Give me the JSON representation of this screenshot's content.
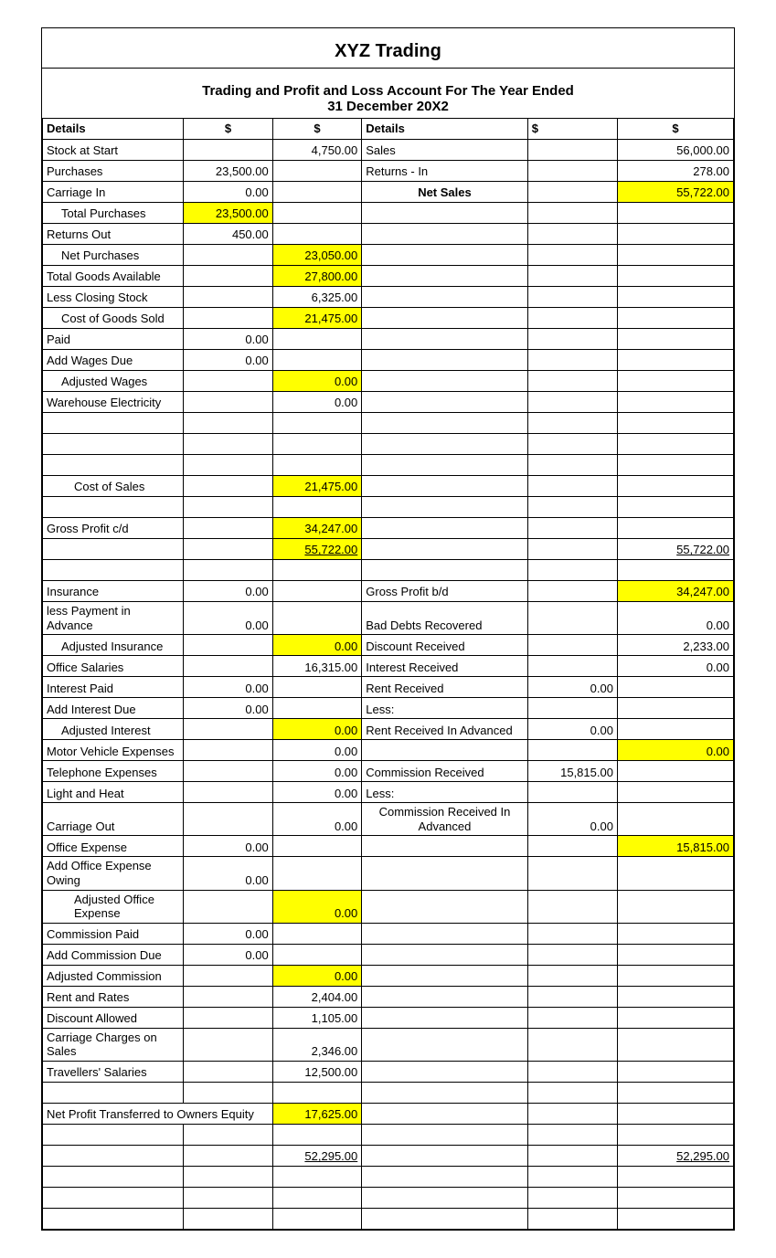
{
  "company": "XYZ Trading",
  "report_line1": "Trading and Profit and Loss Account For The Year Ended",
  "report_line2": "31 December 20X2",
  "headers": {
    "details": "Details",
    "dollar": "$"
  },
  "rows": [
    {
      "l": "Stock at Start",
      "c2": "",
      "c3": "4,750.00",
      "r": "Sales",
      "c5": "",
      "c6": "56,000.00"
    },
    {
      "l": "Purchases",
      "c2": "23,500.00",
      "c3": "",
      "r": "Returns - In",
      "c5": "",
      "c6": "278.00"
    },
    {
      "l": "Carriage In",
      "c2": "0.00",
      "c3": "",
      "r": "Net Sales",
      "r_bold": true,
      "r_center": true,
      "c5": "",
      "c6": "55,722.00",
      "yellow_c6": true
    },
    {
      "l": "Total Purchases",
      "l_indent": 1,
      "c2": "23,500.00",
      "yellow_c2": true,
      "c3": "",
      "r": "",
      "c5": "",
      "c6": ""
    },
    {
      "l": "Returns Out",
      "c2": "450.00",
      "c3": "",
      "r": "",
      "c5": "",
      "c6": ""
    },
    {
      "l": "Net Purchases",
      "l_indent": 1,
      "c2": "",
      "c3": "23,050.00",
      "yellow_c3": true,
      "r": "",
      "c5": "",
      "c6": ""
    },
    {
      "l": " Total Goods Available",
      "c2": "",
      "c3": "27,800.00",
      "yellow_c3": true,
      "r": "",
      "c5": "",
      "c6": ""
    },
    {
      "l": "Less Closing Stock",
      "c2": "",
      "c3": "6,325.00",
      "r": "",
      "c5": "",
      "c6": ""
    },
    {
      "l": "Cost of Goods Sold",
      "l_indent": 1,
      "c2": "",
      "c3": "21,475.00",
      "yellow_c3": true,
      "r": "",
      "c5": "",
      "c6": ""
    },
    {
      "l": "Paid",
      "c2": "0.00",
      "c3": "",
      "r": "",
      "c5": "",
      "c6": ""
    },
    {
      "l": "Add Wages Due",
      "c2": "0.00",
      "c3": "",
      "r": "",
      "c5": "",
      "c6": ""
    },
    {
      "l": "Adjusted Wages",
      "l_indent": 1,
      "c2": "",
      "c3": "0.00",
      "yellow_c3": true,
      "r": "",
      "c5": "",
      "c6": ""
    },
    {
      "l": "Warehouse Electricity",
      "c2": "",
      "c3": "0.00",
      "r": "",
      "c5": "",
      "c6": ""
    },
    {
      "l": "",
      "c2": "",
      "c3": "",
      "r": "",
      "c5": "",
      "c6": ""
    },
    {
      "l": "",
      "c2": "",
      "c3": "",
      "r": "",
      "c5": "",
      "c6": ""
    },
    {
      "l": "",
      "c2": "",
      "c3": "",
      "r": "",
      "c5": "",
      "c6": ""
    },
    {
      "l": "Cost of Sales",
      "l_indent": 2,
      "c2": "",
      "c3": "21,475.00",
      "yellow_c3": true,
      "r": "",
      "c5": "",
      "c6": ""
    },
    {
      "l": "",
      "c2": "",
      "c3": "",
      "r": "",
      "c5": "",
      "c6": ""
    },
    {
      "l": "Gross Profit c/d",
      "c2": "",
      "c3": "34,247.00",
      "yellow_c3": true,
      "r": "",
      "c5": "",
      "c6": ""
    },
    {
      "l": "",
      "c2": "",
      "c3": "55,722.00",
      "yellow_c3": true,
      "c3_underline": true,
      "r": "",
      "c5": "",
      "c6": "55,722.00",
      "c6_underline": true
    },
    {
      "l": "",
      "c2": "",
      "c3": "",
      "r": "",
      "c5": "",
      "c6": ""
    },
    {
      "l": "Insurance",
      "c2": "0.00",
      "c3": "",
      "r": "Gross Profit b/d",
      "c5": "",
      "c6": "34,247.00",
      "yellow_c6": true
    },
    {
      "l": "less Payment in Advance",
      "c2": "0.00",
      "c3": "",
      "r": "Bad Debts Recovered",
      "c5": "",
      "c6": "0.00"
    },
    {
      "l": "Adjusted Insurance",
      "l_indent": 1,
      "c2": "",
      "c3": "0.00",
      "yellow_c3": true,
      "r": "Discount Received",
      "c5": "",
      "c6": "2,233.00"
    },
    {
      "l": "Office Salaries",
      "c2": "",
      "c3": "16,315.00",
      "r": "Interest Received",
      "c5": "",
      "c6": "0.00"
    },
    {
      "l": "Interest Paid",
      "c2": "0.00",
      "c3": "",
      "r": "Rent Received",
      "c5": "0.00",
      "c6": ""
    },
    {
      "l": "Add Interest Due",
      "c2": "0.00",
      "c3": "",
      "r": "Less:",
      "c5": "",
      "c6": ""
    },
    {
      "l": "Adjusted Interest",
      "l_indent": 1,
      "c2": "",
      "c3": "0.00",
      "yellow_c3": true,
      "r": "Rent Received In Advanced",
      "c5": "0.00",
      "c6": ""
    },
    {
      "l": "Motor Vehicle Expenses",
      "c2": "",
      "c3": "0.00",
      "r": "",
      "c5": "",
      "c6": "0.00",
      "yellow_c6": true
    },
    {
      "l": "Telephone Expenses",
      "c2": "",
      "c3": "0.00",
      "r": "Commission Received",
      "c5": "15,815.00",
      "c6": ""
    },
    {
      "l": "Light and Heat",
      "c2": "",
      "c3": "0.00",
      "r": "Less:",
      "c5": "",
      "c6": ""
    },
    {
      "l": "Carriage Out",
      "c2": "",
      "c3": "0.00",
      "r": "Commission Received In Advanced",
      "r_center": true,
      "c5": "0.00",
      "c6": ""
    },
    {
      "l": "Office Expense",
      "c2": "0.00",
      "c3": "",
      "r": "",
      "c5": "",
      "c6": "15,815.00",
      "yellow_c6": true
    },
    {
      "l": "Add Office Expense Owing",
      "c2": "0.00",
      "c3": "",
      "r": "",
      "c5": "",
      "c6": ""
    },
    {
      "l": "Adjusted Office Expense",
      "l_indent": 2,
      "l_center": false,
      "c2": "",
      "c3": "0.00",
      "yellow_c3": true,
      "r": "",
      "c5": "",
      "c6": ""
    },
    {
      "l": "Commission Paid",
      "c2": "0.00",
      "c3": "",
      "r": "",
      "c5": "",
      "c6": ""
    },
    {
      "l": "Add Commission Due",
      "c2": "0.00",
      "c3": "",
      "r": "",
      "c5": "",
      "c6": ""
    },
    {
      "l": " Adjusted Commission",
      "c2": "",
      "c3": "0.00",
      "yellow_c3": true,
      "r": "",
      "c5": "",
      "c6": ""
    },
    {
      "l": "Rent and Rates",
      "c2": "",
      "c3": "2,404.00",
      "r": "",
      "c5": "",
      "c6": ""
    },
    {
      "l": "Discount Allowed",
      "c2": "",
      "c3": "1,105.00",
      "r": "",
      "c5": "",
      "c6": ""
    },
    {
      "l": "Carriage Charges on Sales",
      "c2": "",
      "c3": "2,346.00",
      "r": "",
      "c5": "",
      "c6": ""
    },
    {
      "l": "Travellers' Salaries",
      "c2": "",
      "c3": "12,500.00",
      "r": "",
      "c5": "",
      "c6": ""
    },
    {
      "l": "",
      "c2": "",
      "c3": "",
      "r": "",
      "c5": "",
      "c6": ""
    },
    {
      "l": "Net Profit Transferred to Owners Equity",
      "span_l": true,
      "c3": "17,625.00",
      "yellow_c3": true,
      "r": "",
      "c5": "",
      "c6": ""
    },
    {
      "l": "",
      "c2": "",
      "c3": "",
      "r": "",
      "c5": "",
      "c6": ""
    },
    {
      "l": "",
      "c2": "",
      "c3": "52,295.00",
      "c3_underline": true,
      "r": "",
      "c5": "",
      "c6": "52,295.00",
      "c6_underline": true
    },
    {
      "l": "",
      "c2": "",
      "c3": "",
      "r": "",
      "c5": "",
      "c6": ""
    },
    {
      "l": "",
      "c2": "",
      "c3": "",
      "r": "",
      "c5": "",
      "c6": ""
    },
    {
      "l": "",
      "c2": "",
      "c3": "",
      "r": "",
      "c5": "",
      "c6": ""
    }
  ],
  "colors": {
    "highlight": "#ffff00",
    "border": "#000000",
    "background": "#ffffff"
  }
}
